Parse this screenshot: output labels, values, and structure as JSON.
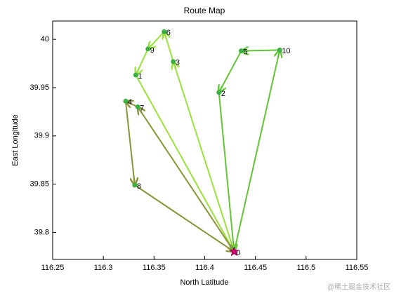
{
  "chart_data": {
    "type": "route",
    "title": "Route Map",
    "x_label": "North Latitude",
    "y_label": "East Longitude",
    "watermark": "@稀土掘金技术社区",
    "xlim": [
      116.25,
      116.55
    ],
    "xticks": [
      116.25,
      116.3,
      116.35,
      116.4,
      116.45,
      116.5,
      116.55
    ],
    "ylim": [
      39.772,
      40.019
    ],
    "yticks": [
      39.8,
      39.85,
      39.9,
      39.95,
      40
    ],
    "points": {
      "labels": [
        "0",
        "1",
        "2",
        "3",
        "4",
        "5",
        "6",
        "7",
        "8",
        "9",
        "10"
      ],
      "x": [
        116.429,
        116.332,
        116.414,
        116.369,
        116.322,
        116.436,
        116.36,
        116.334,
        116.331,
        116.344,
        116.474
      ],
      "y": [
        39.78,
        39.963,
        39.945,
        39.977,
        39.936,
        39.988,
        40.008,
        39.93,
        39.849,
        39.99,
        39.989
      ],
      "color": "#3cb043",
      "depot_color": "#d0006f"
    },
    "series": [
      {
        "color": "#99e23c",
        "x": [
          116.429,
          116.369,
          116.36,
          116.344,
          116.332,
          116.429
        ],
        "y": [
          39.78,
          39.977,
          40.008,
          39.99,
          39.963,
          39.78
        ]
      },
      {
        "color": "#62c437",
        "x": [
          116.429,
          116.474,
          116.436,
          116.414,
          116.429
        ],
        "y": [
          39.78,
          39.989,
          39.988,
          39.945,
          39.78
        ]
      },
      {
        "color": "#8a9438",
        "x": [
          116.429,
          116.334,
          116.322,
          116.331,
          116.429
        ],
        "y": [
          39.78,
          39.93,
          39.936,
          39.849,
          39.78
        ]
      }
    ]
  }
}
